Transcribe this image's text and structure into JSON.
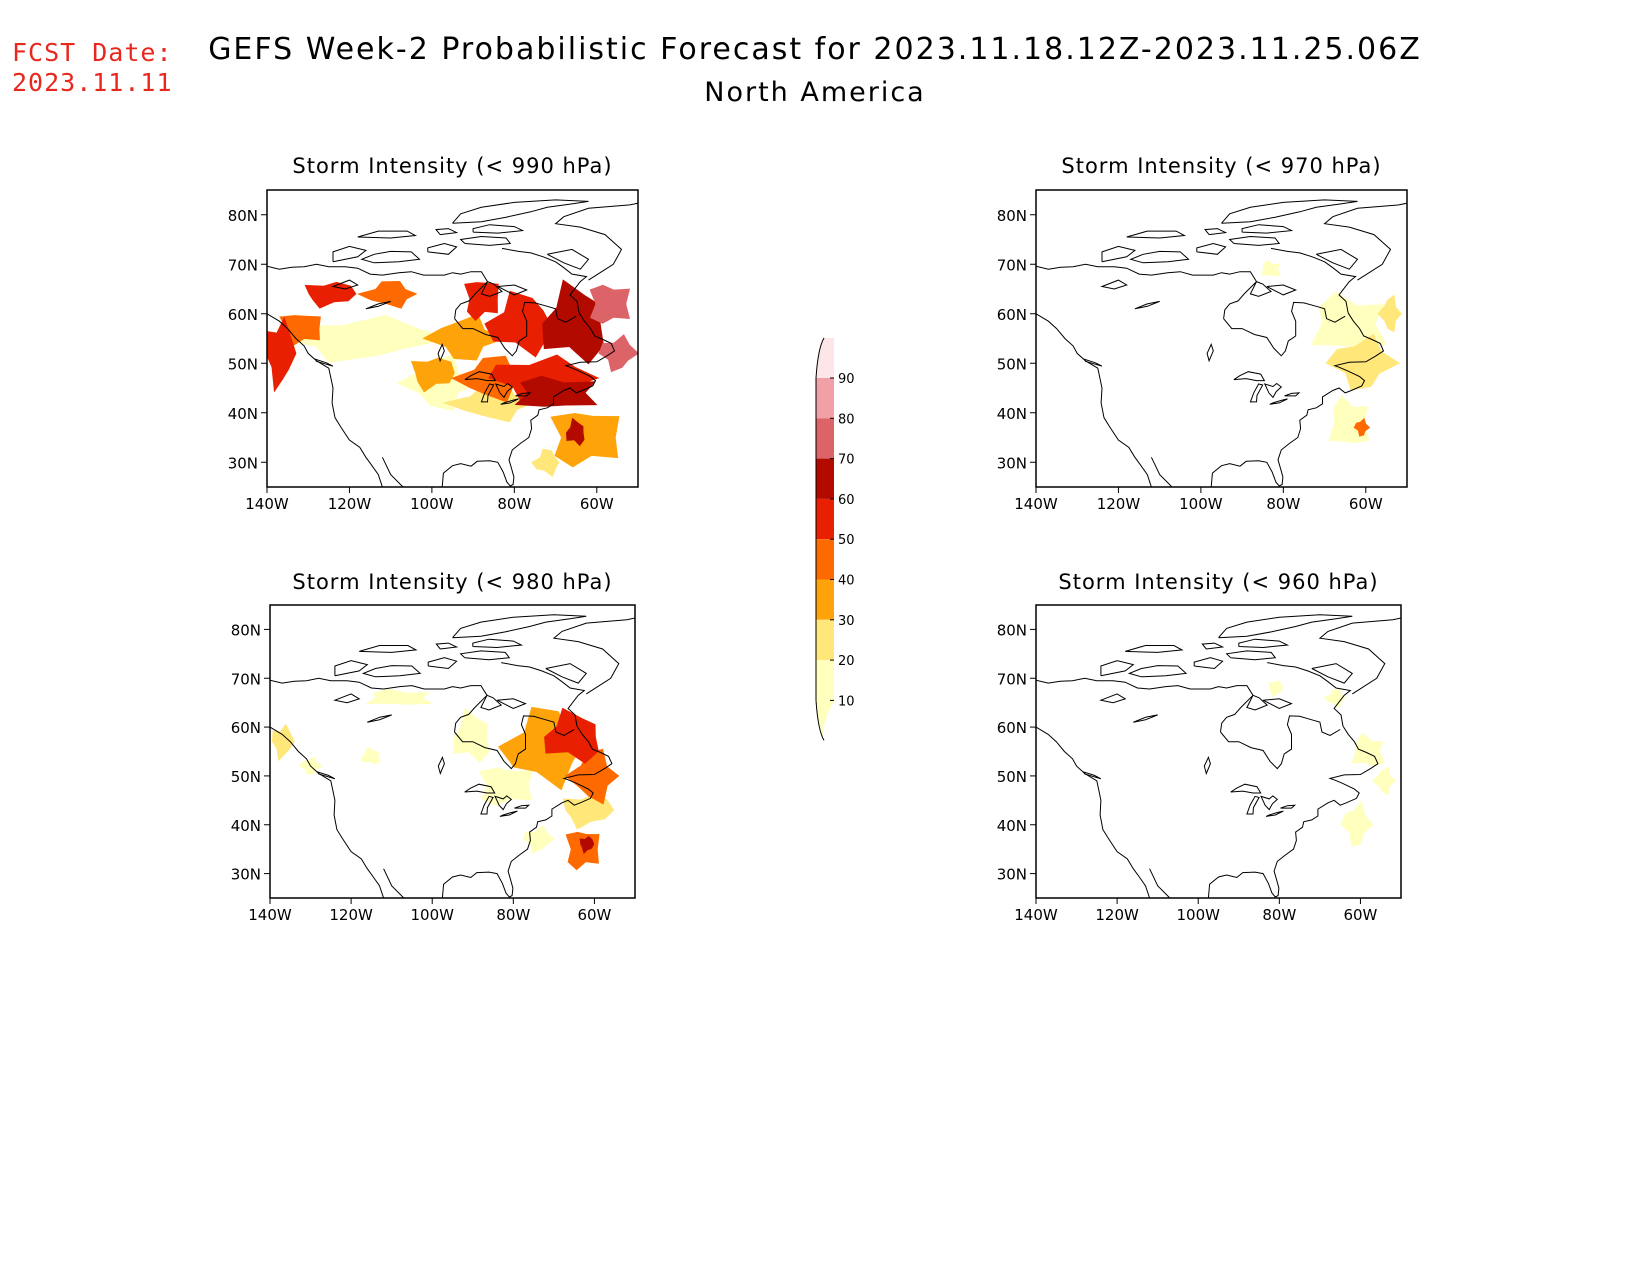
{
  "header": {
    "fcst_label": "FCST Date:",
    "fcst_date": "2023.11.11",
    "title": "GEFS Week-2 Probabilistic Forecast for 2023.11.18.12Z-2023.11.25.06Z",
    "subtitle": "North America"
  },
  "colorbar": {
    "levels": [
      "10",
      "20",
      "30",
      "40",
      "50",
      "60",
      "70",
      "80",
      "90"
    ],
    "colors": [
      "#ffffbe",
      "#ffe77a",
      "#ffa30a",
      "#ff6a00",
      "#e81f00",
      "#b30a00",
      "#dc6468",
      "#f0a0a6",
      "#fde6e8"
    ]
  },
  "axes": {
    "lat_labels": [
      "80N",
      "70N",
      "60N",
      "50N",
      "40N",
      "30N"
    ],
    "lon_labels": [
      "140W",
      "120W",
      "100W",
      "80W",
      "60W"
    ],
    "lat_values": [
      80,
      70,
      60,
      50,
      40,
      30
    ],
    "lon_values": [
      -140,
      -120,
      -100,
      -80,
      -60
    ],
    "lat_range": [
      25,
      85
    ],
    "lon_range": [
      -140,
      -50
    ]
  },
  "panels": [
    {
      "id": "p990",
      "title": "Storm Intensity (< 990 hPa)",
      "blobs": [
        {
          "lon": -137,
          "lat": 52,
          "rlon": 4,
          "rlat": 8,
          "level": 5
        },
        {
          "lon": -132,
          "lat": 57,
          "rlon": 6,
          "rlat": 4,
          "level": 4
        },
        {
          "lon": -125,
          "lat": 64,
          "rlon": 7,
          "rlat": 3,
          "level": 5
        },
        {
          "lon": -110,
          "lat": 64,
          "rlon": 8,
          "rlat": 3,
          "level": 4
        },
        {
          "lon": -118,
          "lat": 55,
          "rlon": 22,
          "rlat": 5,
          "level": 1
        },
        {
          "lon": -100,
          "lat": 48,
          "rlon": 6,
          "rlat": 4,
          "level": 3
        },
        {
          "lon": -98,
          "lat": 46,
          "rlon": 10,
          "rlat": 6,
          "level": 1
        },
        {
          "lon": -92,
          "lat": 55,
          "rlon": 10,
          "rlat": 5,
          "level": 3
        },
        {
          "lon": -88,
          "lat": 63,
          "rlon": 5,
          "rlat": 5,
          "level": 5
        },
        {
          "lon": -85,
          "lat": 47,
          "rlon": 10,
          "rlat": 5,
          "level": 4
        },
        {
          "lon": -85,
          "lat": 42,
          "rlon": 12,
          "rlat": 4,
          "level": 2
        },
        {
          "lon": -78,
          "lat": 58,
          "rlon": 10,
          "rlat": 7,
          "level": 5
        },
        {
          "lon": -74,
          "lat": 47,
          "rlon": 14,
          "rlat": 5,
          "level": 5
        },
        {
          "lon": -70,
          "lat": 44,
          "rlon": 12,
          "rlat": 4,
          "level": 6
        },
        {
          "lon": -65,
          "lat": 58,
          "rlon": 10,
          "rlat": 9,
          "level": 6
        },
        {
          "lon": -57,
          "lat": 62,
          "rlon": 6,
          "rlat": 5,
          "level": 7
        },
        {
          "lon": -55,
          "lat": 52,
          "rlon": 5,
          "rlat": 4,
          "level": 7
        },
        {
          "lon": -63,
          "lat": 35,
          "rlon": 10,
          "rlat": 7,
          "level": 3
        },
        {
          "lon": -65,
          "lat": 36,
          "rlon": 3,
          "rlat": 3,
          "level": 6
        },
        {
          "lon": -72,
          "lat": 30,
          "rlon": 4,
          "rlat": 3,
          "level": 2
        }
      ]
    },
    {
      "id": "p970",
      "title": "Storm Intensity (< 970 hPa)",
      "blobs": [
        {
          "lon": -64,
          "lat": 58,
          "rlon": 11,
          "rlat": 7,
          "level": 1
        },
        {
          "lon": -61,
          "lat": 50,
          "rlon": 9,
          "rlat": 6,
          "level": 2
        },
        {
          "lon": -54,
          "lat": 60,
          "rlon": 3,
          "rlat": 4,
          "level": 2
        },
        {
          "lon": -64,
          "lat": 38,
          "rlon": 6,
          "rlat": 6,
          "level": 1
        },
        {
          "lon": -61,
          "lat": 37,
          "rlon": 2,
          "rlat": 2,
          "level": 4
        },
        {
          "lon": -83,
          "lat": 69,
          "rlon": 3,
          "rlat": 2,
          "level": 1
        }
      ]
    },
    {
      "id": "p980",
      "title": "Storm Intensity (< 980 hPa)",
      "blobs": [
        {
          "lon": -137,
          "lat": 57,
          "rlon": 3,
          "rlat": 4,
          "level": 2
        },
        {
          "lon": -130,
          "lat": 52,
          "rlon": 3,
          "rlat": 2,
          "level": 1
        },
        {
          "lon": -115,
          "lat": 54,
          "rlon": 3,
          "rlat": 2,
          "level": 1
        },
        {
          "lon": -108,
          "lat": 66,
          "rlon": 10,
          "rlat": 2,
          "level": 1
        },
        {
          "lon": -90,
          "lat": 58,
          "rlon": 6,
          "rlat": 6,
          "level": 1
        },
        {
          "lon": -82,
          "lat": 48,
          "rlon": 8,
          "rlat": 5,
          "level": 1
        },
        {
          "lon": -72,
          "lat": 56,
          "rlon": 12,
          "rlat": 9,
          "level": 3
        },
        {
          "lon": -65,
          "lat": 58,
          "rlon": 9,
          "rlat": 6,
          "level": 5
        },
        {
          "lon": -60,
          "lat": 50,
          "rlon": 7,
          "rlat": 6,
          "level": 4
        },
        {
          "lon": -62,
          "lat": 43,
          "rlon": 7,
          "rlat": 4,
          "level": 2
        },
        {
          "lon": -63,
          "lat": 35,
          "rlon": 5,
          "rlat": 5,
          "level": 4
        },
        {
          "lon": -62,
          "lat": 36,
          "rlon": 2,
          "rlat": 2,
          "level": 6
        },
        {
          "lon": -74,
          "lat": 37,
          "rlon": 4,
          "rlat": 3,
          "level": 1
        }
      ]
    },
    {
      "id": "p960",
      "title": "Storm Intensity (< 960 hPa)",
      "blobs": [
        {
          "lon": -66,
          "lat": 66,
          "rlon": 3,
          "rlat": 2,
          "level": 1
        },
        {
          "lon": -58,
          "lat": 55,
          "rlon": 5,
          "rlat": 4,
          "level": 1
        },
        {
          "lon": -54,
          "lat": 49,
          "rlon": 3,
          "rlat": 3,
          "level": 1
        },
        {
          "lon": -61,
          "lat": 40,
          "rlon": 4,
          "rlat": 5,
          "level": 1
        },
        {
          "lon": -81,
          "lat": 68,
          "rlon": 2,
          "rlat": 2,
          "level": 1
        }
      ]
    }
  ]
}
